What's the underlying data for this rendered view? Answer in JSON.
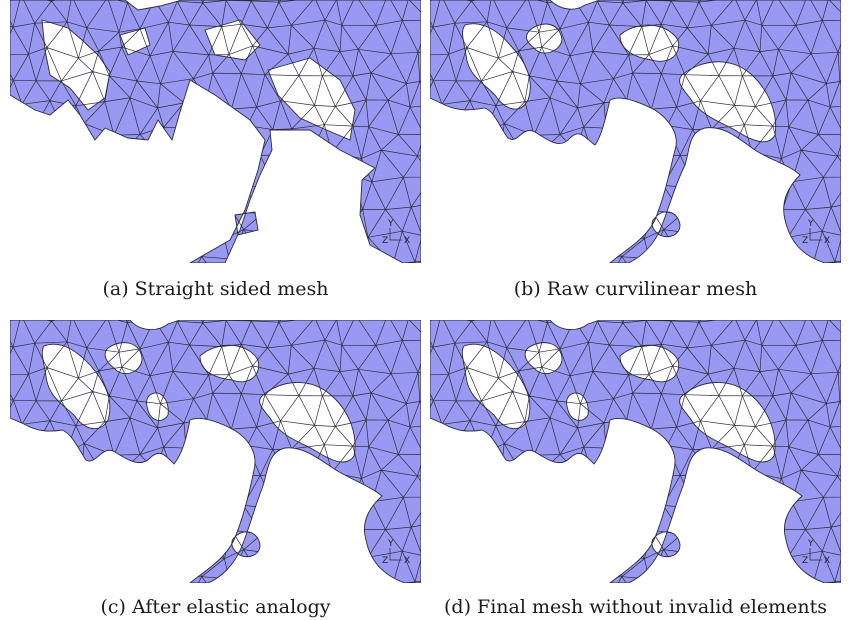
{
  "colors": {
    "mesh_fill": "#9999f4",
    "mesh_edge": "#2b2b3a",
    "background": "#ffffff"
  },
  "panels": [
    {
      "id": "a",
      "caption": "(a) Straight sided mesh",
      "style": "straight"
    },
    {
      "id": "b",
      "caption": "(b) Raw curvilinear mesh",
      "style": "curved"
    },
    {
      "id": "c",
      "caption": "(c) After elastic analogy",
      "style": "curved"
    },
    {
      "id": "d",
      "caption": "(d) Final mesh without invalid elements",
      "style": "curved"
    }
  ],
  "axes_triad": {
    "y": "Y",
    "z": "Z",
    "x": "X"
  }
}
